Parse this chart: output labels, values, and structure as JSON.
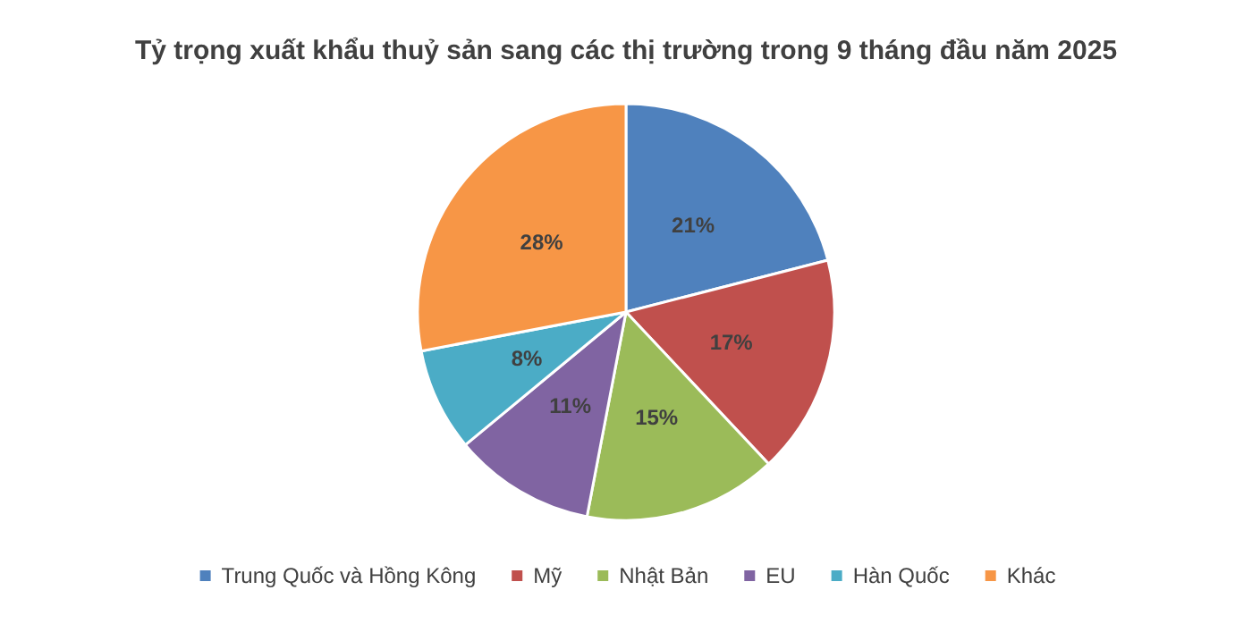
{
  "chart_data": {
    "type": "pie",
    "title": "Tỷ trọng xuất khẩu thuỷ sản sang các thị trường trong 9 tháng đầu năm 2025",
    "categories": [
      "Trung Quốc và Hồng Kông",
      "Mỹ",
      "Nhật Bản",
      "EU",
      "Hàn Quốc",
      "Khác"
    ],
    "values": [
      21,
      17,
      15,
      11,
      8,
      28
    ],
    "colors": [
      "#4f81bd",
      "#c0504d",
      "#9bbb59",
      "#8064a2",
      "#4bacc6",
      "#f79646"
    ],
    "value_labels": [
      "21%",
      "17%",
      "15%",
      "11%",
      "8%",
      "28%"
    ],
    "legend": "bottom"
  }
}
